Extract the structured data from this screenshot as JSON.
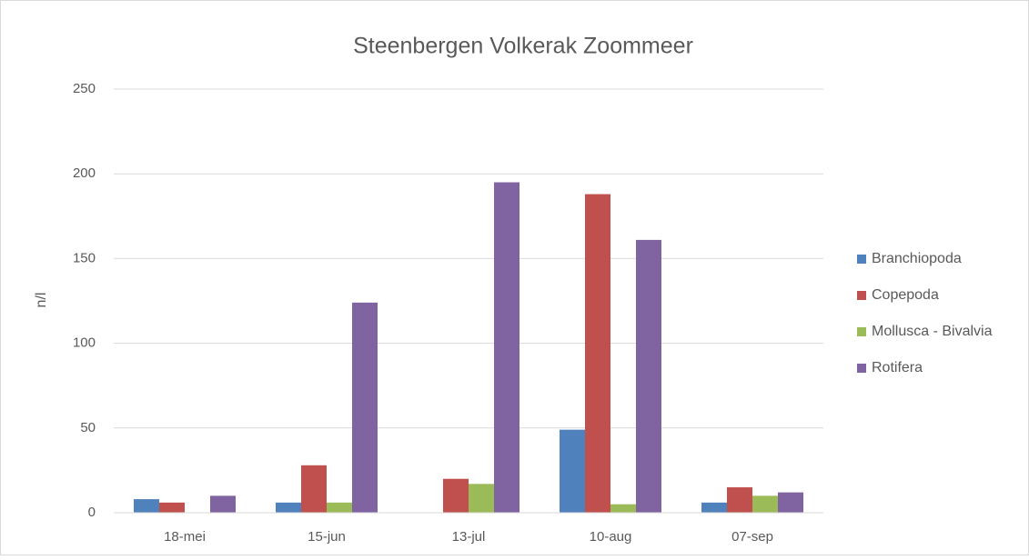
{
  "chart_data": {
    "type": "bar",
    "title": "Steenbergen Volkerak Zoommeer",
    "y_label": "n/l",
    "categories": [
      "18-mei",
      "15-jun",
      "13-jul",
      "10-aug",
      "07-sep"
    ],
    "series": [
      {
        "name": "Branchiopoda",
        "color": "#4f81bd",
        "values": [
          8,
          6,
          0,
          49,
          6
        ]
      },
      {
        "name": "Copepoda",
        "color": "#c0504d",
        "values": [
          6,
          28,
          20,
          188,
          15
        ]
      },
      {
        "name": "Mollusca - Bivalvia",
        "color": "#9bbb59",
        "values": [
          0,
          6,
          17,
          5,
          10
        ]
      },
      {
        "name": "Rotifera",
        "color": "#8064a2",
        "values": [
          10,
          124,
          195,
          161,
          12
        ]
      }
    ],
    "ylim": [
      0,
      250
    ],
    "yticks": [
      0,
      50,
      100,
      150,
      200,
      250
    ],
    "grid": true,
    "legend": "right"
  }
}
